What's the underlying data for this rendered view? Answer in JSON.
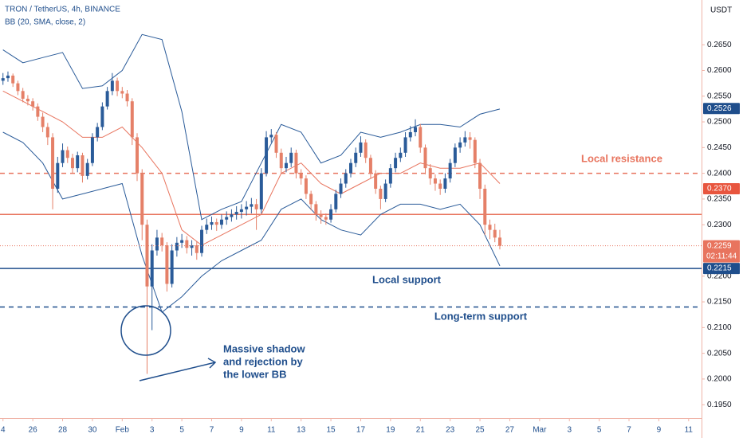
{
  "chart_data": {
    "type": "candlestick",
    "title": "TRON / TetherUS, 4h, BINANCE",
    "subtitle": "BB (20, SMA, close, 2)",
    "y_axis_label": "USDT",
    "up_color": "#2a5b99",
    "down_color": "#e58068",
    "x": [
      0,
      1,
      2,
      3,
      4,
      5,
      6,
      7,
      8,
      9,
      10,
      11,
      12,
      13,
      14,
      15,
      16,
      17,
      18,
      19,
      20,
      21,
      22,
      23,
      24,
      25,
      26,
      27,
      28,
      29,
      30,
      31,
      32,
      33,
      34,
      35,
      36,
      37,
      38,
      39,
      40,
      41,
      42,
      43,
      44,
      45,
      46,
      47,
      48,
      49,
      50,
      51,
      52,
      53,
      54,
      55,
      56,
      57,
      58,
      59,
      60,
      61,
      62,
      63,
      64,
      65,
      66,
      67,
      68,
      69,
      70,
      71,
      72,
      73,
      74,
      75,
      76,
      77,
      78,
      79,
      80,
      81,
      82,
      83,
      84,
      85,
      86,
      87,
      88,
      89,
      90,
      91,
      92,
      93,
      94,
      95,
      96,
      97,
      98,
      99,
      100
    ],
    "open": [
      0.258,
      0.2585,
      0.259,
      0.2575,
      0.256,
      0.2545,
      0.254,
      0.253,
      0.251,
      0.249,
      0.247,
      0.237,
      0.242,
      0.2445,
      0.243,
      0.241,
      0.2435,
      0.2395,
      0.242,
      0.247,
      0.249,
      0.253,
      0.256,
      0.258,
      0.256,
      0.2555,
      0.254,
      0.247,
      0.24,
      0.23,
      0.218,
      0.225,
      0.2275,
      0.226,
      0.2185,
      0.225,
      0.2265,
      0.227,
      0.2255,
      0.226,
      0.2245,
      0.229,
      0.23,
      0.2305,
      0.23,
      0.231,
      0.2315,
      0.232,
      0.2325,
      0.233,
      0.2335,
      0.234,
      0.233,
      0.24,
      0.247,
      0.2475,
      0.244,
      0.241,
      0.242,
      0.244,
      0.24,
      0.239,
      0.236,
      0.234,
      0.232,
      0.2315,
      0.231,
      0.233,
      0.236,
      0.238,
      0.24,
      0.242,
      0.244,
      0.246,
      0.243,
      0.24,
      0.237,
      0.235,
      0.238,
      0.241,
      0.243,
      0.244,
      0.247,
      0.248,
      0.249,
      0.245,
      0.241,
      0.239,
      0.238,
      0.237,
      0.239,
      0.242,
      0.245,
      0.246,
      0.247,
      0.2465,
      0.242,
      0.237,
      0.23,
      0.229,
      0.2275
    ],
    "high": [
      0.2595,
      0.2598,
      0.2594,
      0.258,
      0.2566,
      0.2552,
      0.2546,
      0.2536,
      0.2518,
      0.2498,
      0.2478,
      0.2432,
      0.2458,
      0.2452,
      0.2438,
      0.2442,
      0.244,
      0.2428,
      0.2478,
      0.2498,
      0.2538,
      0.2568,
      0.2595,
      0.2586,
      0.2568,
      0.2562,
      0.2546,
      0.2478,
      0.2408,
      0.231,
      0.2262,
      0.229,
      0.2284,
      0.2266,
      0.2262,
      0.2276,
      0.2282,
      0.2278,
      0.227,
      0.2268,
      0.2298,
      0.2312,
      0.2316,
      0.2312,
      0.232,
      0.2326,
      0.233,
      0.2336,
      0.234,
      0.2346,
      0.2352,
      0.235,
      0.241,
      0.2482,
      0.2486,
      0.248,
      0.2448,
      0.2432,
      0.245,
      0.2446,
      0.2408,
      0.2396,
      0.2366,
      0.2346,
      0.2328,
      0.2322,
      0.234,
      0.2368,
      0.239,
      0.2408,
      0.2428,
      0.245,
      0.2472,
      0.2466,
      0.2436,
      0.2406,
      0.2376,
      0.2388,
      0.2418,
      0.244,
      0.245,
      0.248,
      0.2492,
      0.2505,
      0.2496,
      0.2456,
      0.2418,
      0.2398,
      0.2388,
      0.24,
      0.2428,
      0.2458,
      0.247,
      0.2482,
      0.248,
      0.247,
      0.2428,
      0.2378,
      0.231,
      0.2302,
      0.229
    ],
    "low": [
      0.2572,
      0.2578,
      0.2568,
      0.2552,
      0.2538,
      0.2532,
      0.2522,
      0.2502,
      0.248,
      0.2455,
      0.233,
      0.2362,
      0.2412,
      0.242,
      0.24,
      0.2402,
      0.2382,
      0.2388,
      0.2414,
      0.2462,
      0.2484,
      0.2524,
      0.2552,
      0.255,
      0.2546,
      0.253,
      0.2455,
      0.2385,
      0.227,
      0.201,
      0.2095,
      0.224,
      0.2248,
      0.217,
      0.2178,
      0.2238,
      0.2255,
      0.2244,
      0.224,
      0.2232,
      0.2238,
      0.2282,
      0.229,
      0.2288,
      0.2292,
      0.23,
      0.2306,
      0.231,
      0.2312,
      0.2318,
      0.2322,
      0.229,
      0.2322,
      0.2394,
      0.246,
      0.243,
      0.24,
      0.2402,
      0.2412,
      0.239,
      0.2378,
      0.235,
      0.2328,
      0.2308,
      0.2302,
      0.23,
      0.2304,
      0.2324,
      0.2352,
      0.2372,
      0.2392,
      0.2412,
      0.2432,
      0.242,
      0.239,
      0.236,
      0.233,
      0.2344,
      0.2372,
      0.2402,
      0.2422,
      0.2432,
      0.2462,
      0.2472,
      0.244,
      0.2398,
      0.2378,
      0.2366,
      0.2358,
      0.2362,
      0.2382,
      0.2412,
      0.244,
      0.2452,
      0.2448,
      0.241,
      0.235,
      0.228,
      0.2272,
      0.2266,
      0.2252
    ],
    "close": [
      0.2585,
      0.259,
      0.2575,
      0.256,
      0.2545,
      0.254,
      0.253,
      0.251,
      0.249,
      0.247,
      0.237,
      0.242,
      0.2445,
      0.243,
      0.241,
      0.2435,
      0.2395,
      0.242,
      0.247,
      0.249,
      0.253,
      0.256,
      0.258,
      0.256,
      0.2555,
      0.254,
      0.247,
      0.24,
      0.23,
      0.218,
      0.225,
      0.2275,
      0.226,
      0.2185,
      0.225,
      0.2265,
      0.227,
      0.2255,
      0.226,
      0.2245,
      0.229,
      0.23,
      0.2305,
      0.23,
      0.231,
      0.2315,
      0.232,
      0.2325,
      0.233,
      0.2335,
      0.234,
      0.233,
      0.24,
      0.247,
      0.2475,
      0.244,
      0.241,
      0.242,
      0.244,
      0.24,
      0.239,
      0.236,
      0.234,
      0.232,
      0.2315,
      0.231,
      0.233,
      0.236,
      0.238,
      0.24,
      0.242,
      0.244,
      0.246,
      0.243,
      0.24,
      0.237,
      0.235,
      0.238,
      0.241,
      0.243,
      0.244,
      0.247,
      0.248,
      0.249,
      0.245,
      0.241,
      0.239,
      0.238,
      0.237,
      0.239,
      0.242,
      0.245,
      0.246,
      0.247,
      0.2465,
      0.242,
      0.237,
      0.23,
      0.229,
      0.2275,
      0.2259
    ],
    "bollinger": {
      "x": [
        0,
        4,
        8,
        12,
        16,
        20,
        24,
        28,
        32,
        36,
        40,
        44,
        48,
        52,
        56,
        60,
        64,
        68,
        72,
        76,
        80,
        84,
        88,
        92,
        96,
        100
      ],
      "upper": [
        0.264,
        0.2615,
        0.2625,
        0.2635,
        0.2565,
        0.257,
        0.26,
        0.267,
        0.266,
        0.252,
        0.231,
        0.233,
        0.2345,
        0.242,
        0.2495,
        0.248,
        0.242,
        0.2435,
        0.248,
        0.247,
        0.248,
        0.2495,
        0.2495,
        0.249,
        0.2515,
        0.2525
      ],
      "middle": [
        0.256,
        0.254,
        0.252,
        0.25,
        0.247,
        0.247,
        0.249,
        0.245,
        0.24,
        0.229,
        0.226,
        0.228,
        0.23,
        0.232,
        0.24,
        0.242,
        0.238,
        0.236,
        0.238,
        0.24,
        0.24,
        0.242,
        0.241,
        0.241,
        0.242,
        0.238
      ],
      "lower": [
        0.248,
        0.246,
        0.242,
        0.235,
        0.236,
        0.237,
        0.238,
        0.224,
        0.213,
        0.216,
        0.22,
        0.223,
        0.225,
        0.227,
        0.233,
        0.235,
        0.231,
        0.229,
        0.228,
        0.232,
        0.234,
        0.234,
        0.233,
        0.234,
        0.23,
        0.222
      ],
      "band_color": "#2a5b99",
      "middle_color": "#e8745e"
    },
    "levels": [
      {
        "value": 0.24,
        "style": "dashed",
        "color": "#e8745e",
        "label": "Local resistance"
      },
      {
        "value": 0.232,
        "style": "solid",
        "color": "#e8745e"
      },
      {
        "value": 0.2215,
        "style": "solid",
        "color": "#1f4e8c",
        "label": "Local support"
      },
      {
        "value": 0.214,
        "style": "dashed",
        "color": "#1f4e8c",
        "label": "Long-term support"
      }
    ],
    "price_labels": [
      {
        "value": 0.2526,
        "label": "0.2526",
        "color": "#1f4e8c"
      },
      {
        "value": 0.237,
        "label": "0.2370",
        "color": "#e8553e"
      },
      {
        "value": 0.2259,
        "label": "0.2259",
        "color": "#e8745e",
        "countdown": "02:11:44"
      },
      {
        "value": 0.2215,
        "label": "0.2215",
        "color": "#1f4e8c"
      }
    ],
    "annotation": [
      "Massive shadow",
      "and rejection by",
      "the lower BB"
    ],
    "ylim": [
      0.1924,
      0.2737
    ],
    "yticks": [
      {
        "value": 0.195,
        "label": "0.1950"
      },
      {
        "value": 0.2,
        "label": "0.2000"
      },
      {
        "value": 0.205,
        "label": "0.2050"
      },
      {
        "value": 0.21,
        "label": "0.2100"
      },
      {
        "value": 0.215,
        "label": "0.2150"
      },
      {
        "value": 0.22,
        "label": "0.2200"
      },
      {
        "value": 0.23,
        "label": "0.2300"
      },
      {
        "value": 0.235,
        "label": "0.2350"
      },
      {
        "value": 0.24,
        "label": "0.2400"
      },
      {
        "value": 0.245,
        "label": "0.2450"
      },
      {
        "value": 0.25,
        "label": "0.2500"
      },
      {
        "value": 0.255,
        "label": "0.2550"
      },
      {
        "value": 0.26,
        "label": "0.2600"
      },
      {
        "value": 0.265,
        "label": "0.2650"
      }
    ],
    "xlim": [
      -0.6,
      140.6
    ],
    "xticks": [
      {
        "value": 0,
        "label": "4"
      },
      {
        "value": 6,
        "label": "26"
      },
      {
        "value": 12,
        "label": "28"
      },
      {
        "value": 18,
        "label": "30"
      },
      {
        "value": 24,
        "label": "Feb"
      },
      {
        "value": 30,
        "label": "3"
      },
      {
        "value": 36,
        "label": "5"
      },
      {
        "value": 42,
        "label": "7"
      },
      {
        "value": 48,
        "label": "9"
      },
      {
        "value": 54,
        "label": "11"
      },
      {
        "value": 60,
        "label": "13"
      },
      {
        "value": 66,
        "label": "15"
      },
      {
        "value": 72,
        "label": "17"
      },
      {
        "value": 78,
        "label": "19"
      },
      {
        "value": 84,
        "label": "21"
      },
      {
        "value": 90,
        "label": "23"
      },
      {
        "value": 96,
        "label": "25"
      },
      {
        "value": 102,
        "label": "27"
      },
      {
        "value": 108,
        "label": "Mar"
      },
      {
        "value": 114,
        "label": "3"
      },
      {
        "value": 120,
        "label": "5"
      },
      {
        "value": 126,
        "label": "7"
      },
      {
        "value": 132,
        "label": "9"
      },
      {
        "value": 138,
        "label": "11"
      }
    ]
  }
}
